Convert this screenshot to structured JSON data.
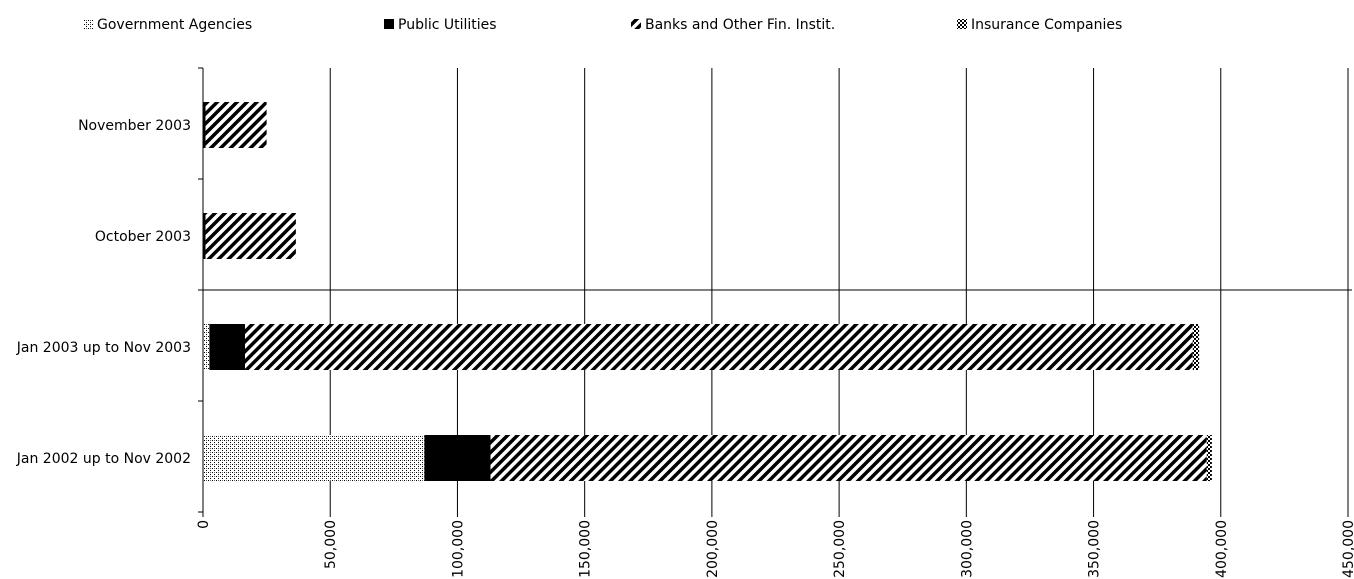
{
  "chart_data": {
    "type": "bar",
    "orientation": "horizontal",
    "stacked": true,
    "categories": [
      "November 2003",
      "October 2003",
      "Jan 2003 up to Nov 2003",
      "Jan 2002 up to Nov 2002"
    ],
    "series": [
      {
        "name": "Government Agencies",
        "values": [
          0,
          0,
          2500,
          87000
        ]
      },
      {
        "name": "Public Utilities",
        "values": [
          1000,
          1000,
          14000,
          26000
        ]
      },
      {
        "name": "Banks and Other Fin. Instit.",
        "values": [
          24000,
          35500,
          372500,
          281500
        ]
      },
      {
        "name": "Insurance Companies",
        "values": [
          0,
          0,
          2500,
          2000
        ]
      }
    ],
    "xlim": [
      0,
      450000
    ],
    "x_ticks": [
      "0",
      "50,000",
      "100,000",
      "150,000",
      "200,000",
      "250,000",
      "300,000",
      "350,000",
      "400,000",
      "450,000"
    ],
    "grid": "vertical",
    "legend_position": "top"
  }
}
